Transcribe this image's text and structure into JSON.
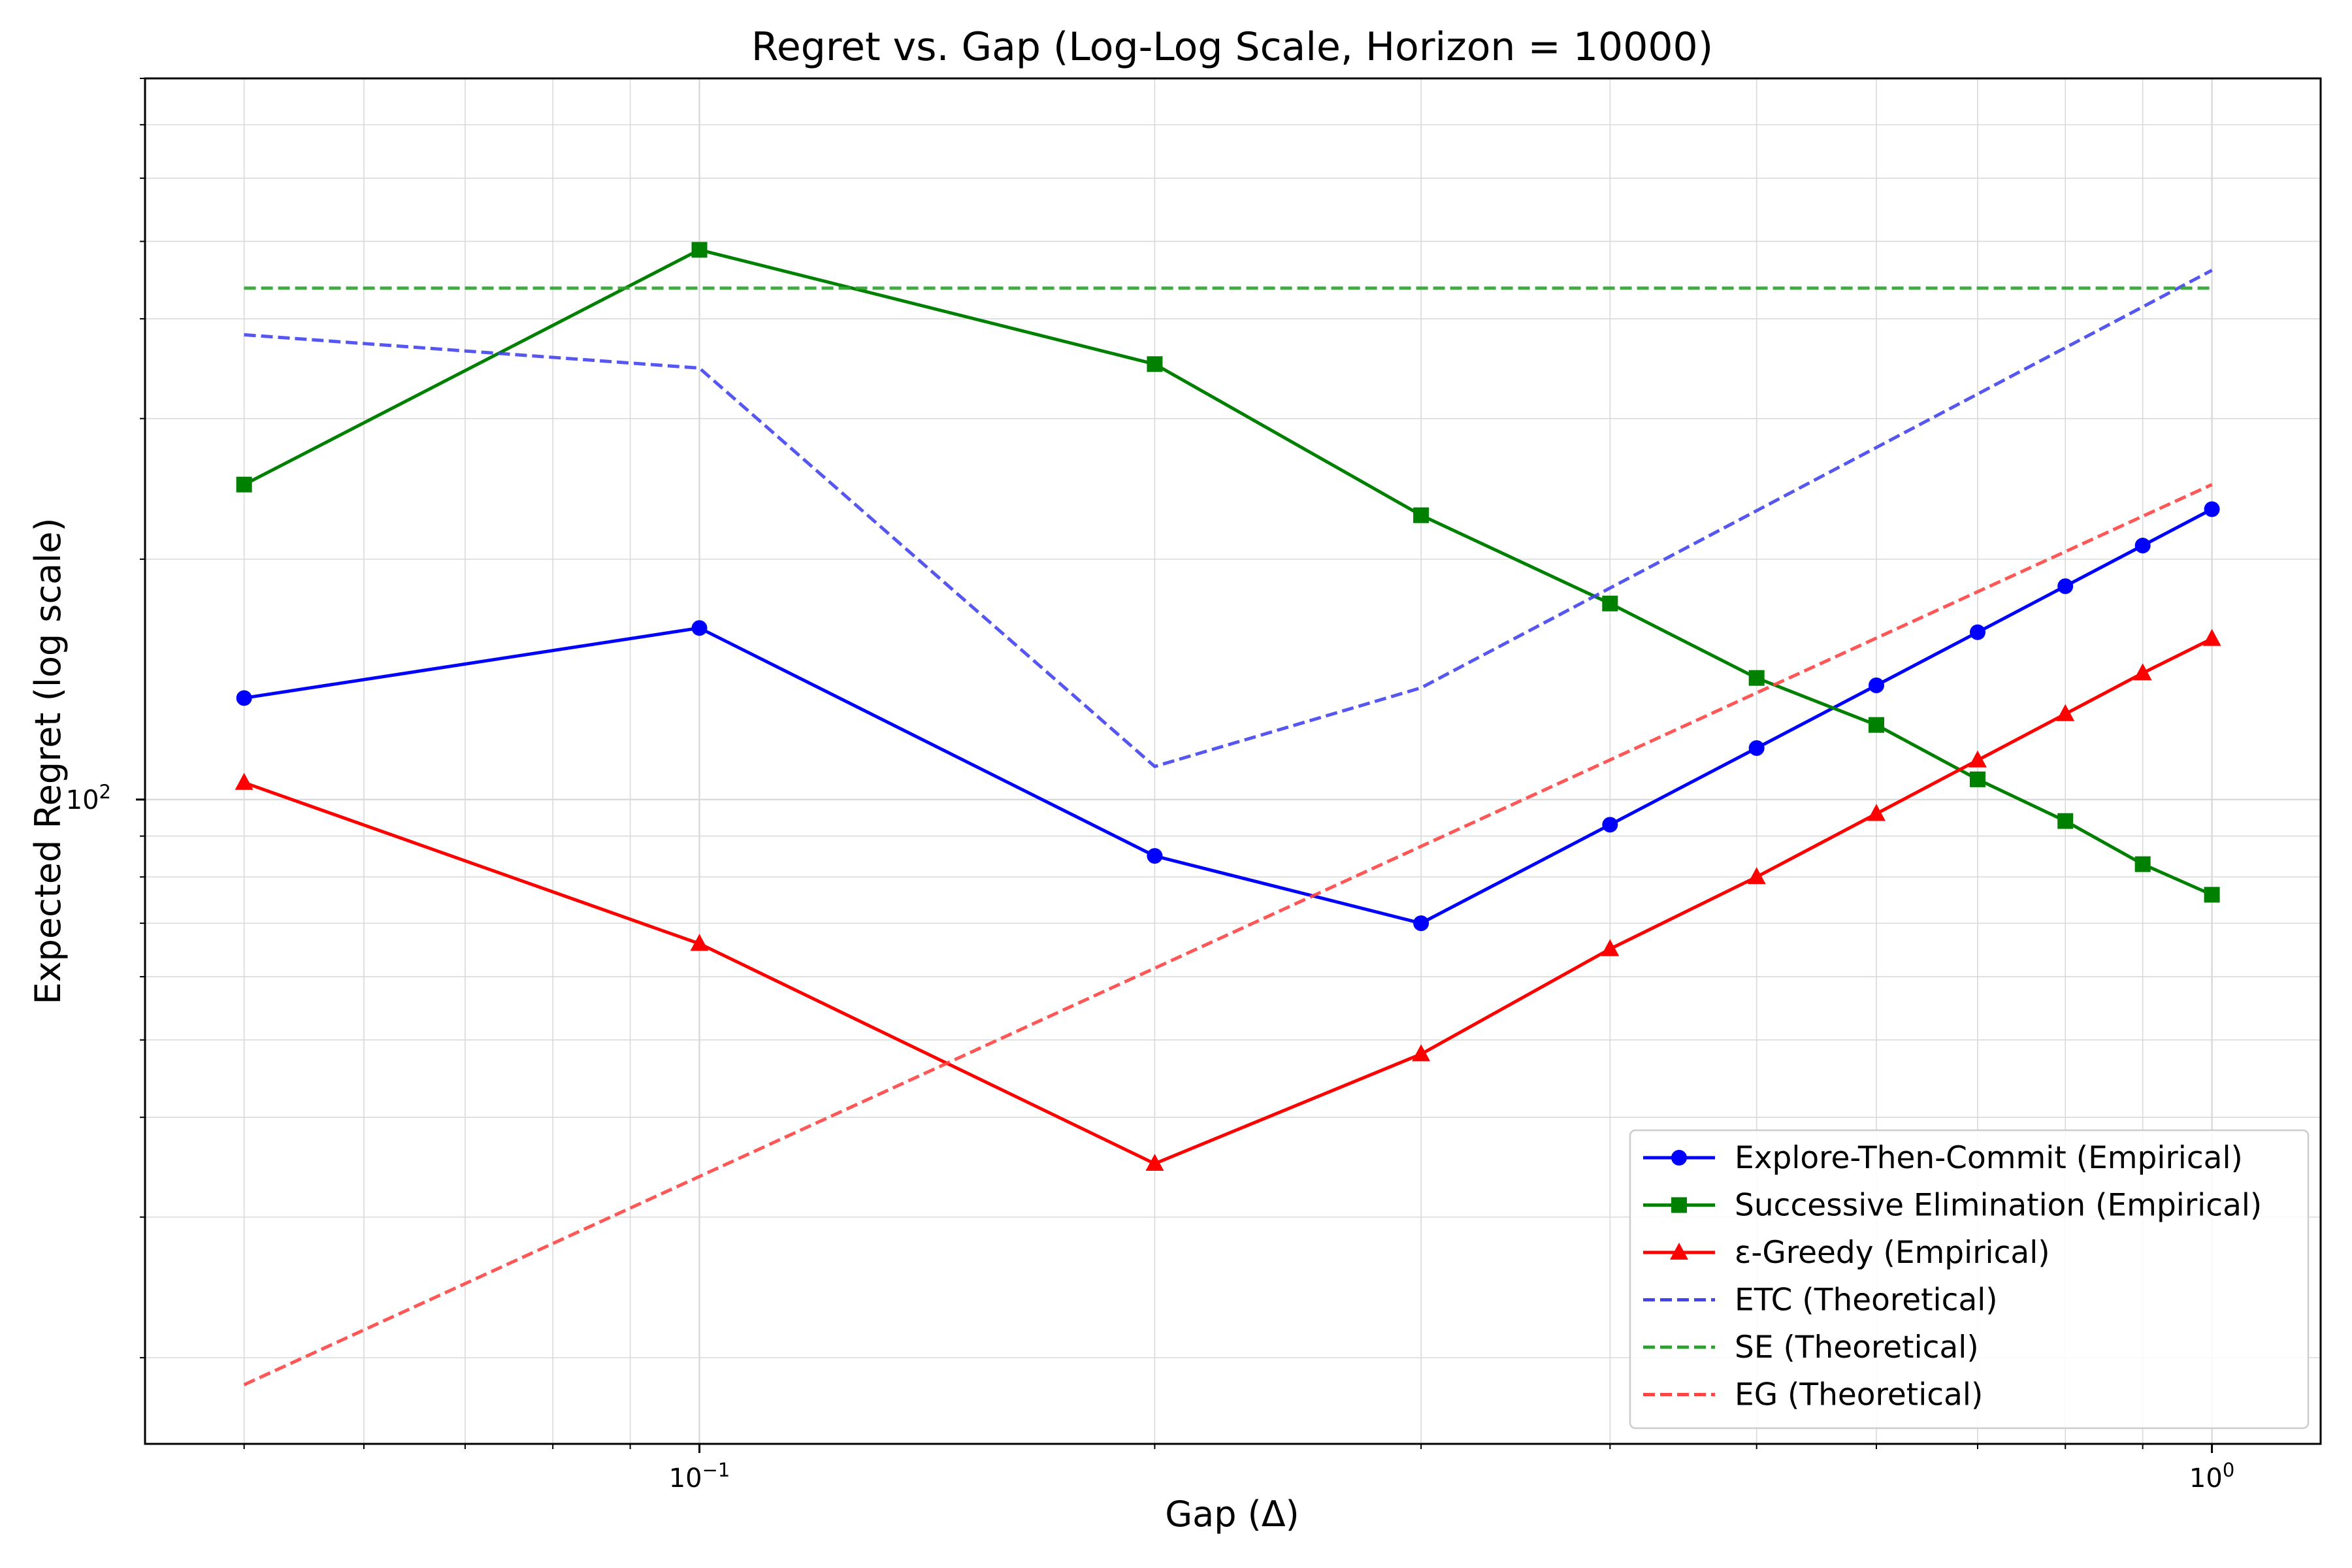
{
  "chart_data": {
    "type": "line",
    "title": "Regret vs. Gap (Log-Log Scale, Horizon = 10000)",
    "xlabel": "Gap (Δ)",
    "ylabel": "Expected Regret (log scale)",
    "xscale": "log",
    "yscale": "log",
    "xlim": [
      0.043,
      1.18
    ],
    "ylim": [
      15.6,
      800
    ],
    "grid": true,
    "legend_position": "lower right",
    "x_ticks": [
      {
        "value": 0.1,
        "base": "10",
        "exp": "−1"
      },
      {
        "value": 1.0,
        "base": "10",
        "exp": "0"
      }
    ],
    "y_ticks": [
      {
        "value": 100,
        "base": "10",
        "exp": "2"
      }
    ],
    "x": [
      0.05,
      0.1,
      0.2,
      0.3,
      0.4,
      0.5,
      0.6,
      0.7,
      0.8,
      0.9,
      1.0
    ],
    "series": [
      {
        "name": "Explore-Then-Commit (Empirical)",
        "color": "#0000ff",
        "style": "solid",
        "marker": "circle",
        "x": [
          0.05,
          0.1,
          0.2,
          0.3,
          0.4,
          0.5,
          0.6,
          0.7,
          0.8,
          0.9,
          1.0
        ],
        "values": [
          134,
          164,
          85,
          70,
          93,
          116,
          139,
          162,
          185,
          208,
          231
        ]
      },
      {
        "name": "Successive Elimination (Empirical)",
        "color": "#008000",
        "style": "solid",
        "marker": "square",
        "x": [
          0.05,
          0.1,
          0.2,
          0.3,
          0.4,
          0.5,
          0.6,
          0.7,
          0.8,
          0.9,
          1.0
        ],
        "values": [
          248,
          488,
          351,
          227,
          176,
          142,
          124,
          106,
          94,
          83,
          76
        ]
      },
      {
        "name": "ε-Greedy (Empirical)",
        "color": "#ff0000",
        "style": "solid",
        "marker": "triangle",
        "x": [
          0.05,
          0.1,
          0.2,
          0.3,
          0.4,
          0.5,
          0.6,
          0.7,
          0.8,
          0.9,
          1.0
        ],
        "values": [
          105,
          66,
          35,
          48,
          65,
          80,
          96,
          112,
          128,
          144,
          159
        ]
      },
      {
        "name": "ETC (Theoretical)",
        "color": "#4444ee",
        "style": "dashed",
        "marker": "none",
        "x": [
          0.05,
          0.1,
          0.2,
          0.3,
          0.4,
          0.5,
          0.6,
          0.7,
          0.8,
          0.9,
          1.0
        ],
        "values": [
          382,
          347,
          110,
          138,
          184,
          230,
          276,
          322,
          368,
          414,
          460
        ]
      },
      {
        "name": "SE (Theoretical)",
        "color": "#2ca02c",
        "style": "dashed",
        "marker": "none",
        "x": [
          0.05,
          1.0
        ],
        "values": [
          437,
          437
        ]
      },
      {
        "name": "EG (Theoretical)",
        "color": "#ff4444",
        "style": "dashed",
        "marker": "none",
        "x": [
          0.05,
          1.0
        ],
        "values": [
          18.5,
          248
        ]
      }
    ]
  }
}
